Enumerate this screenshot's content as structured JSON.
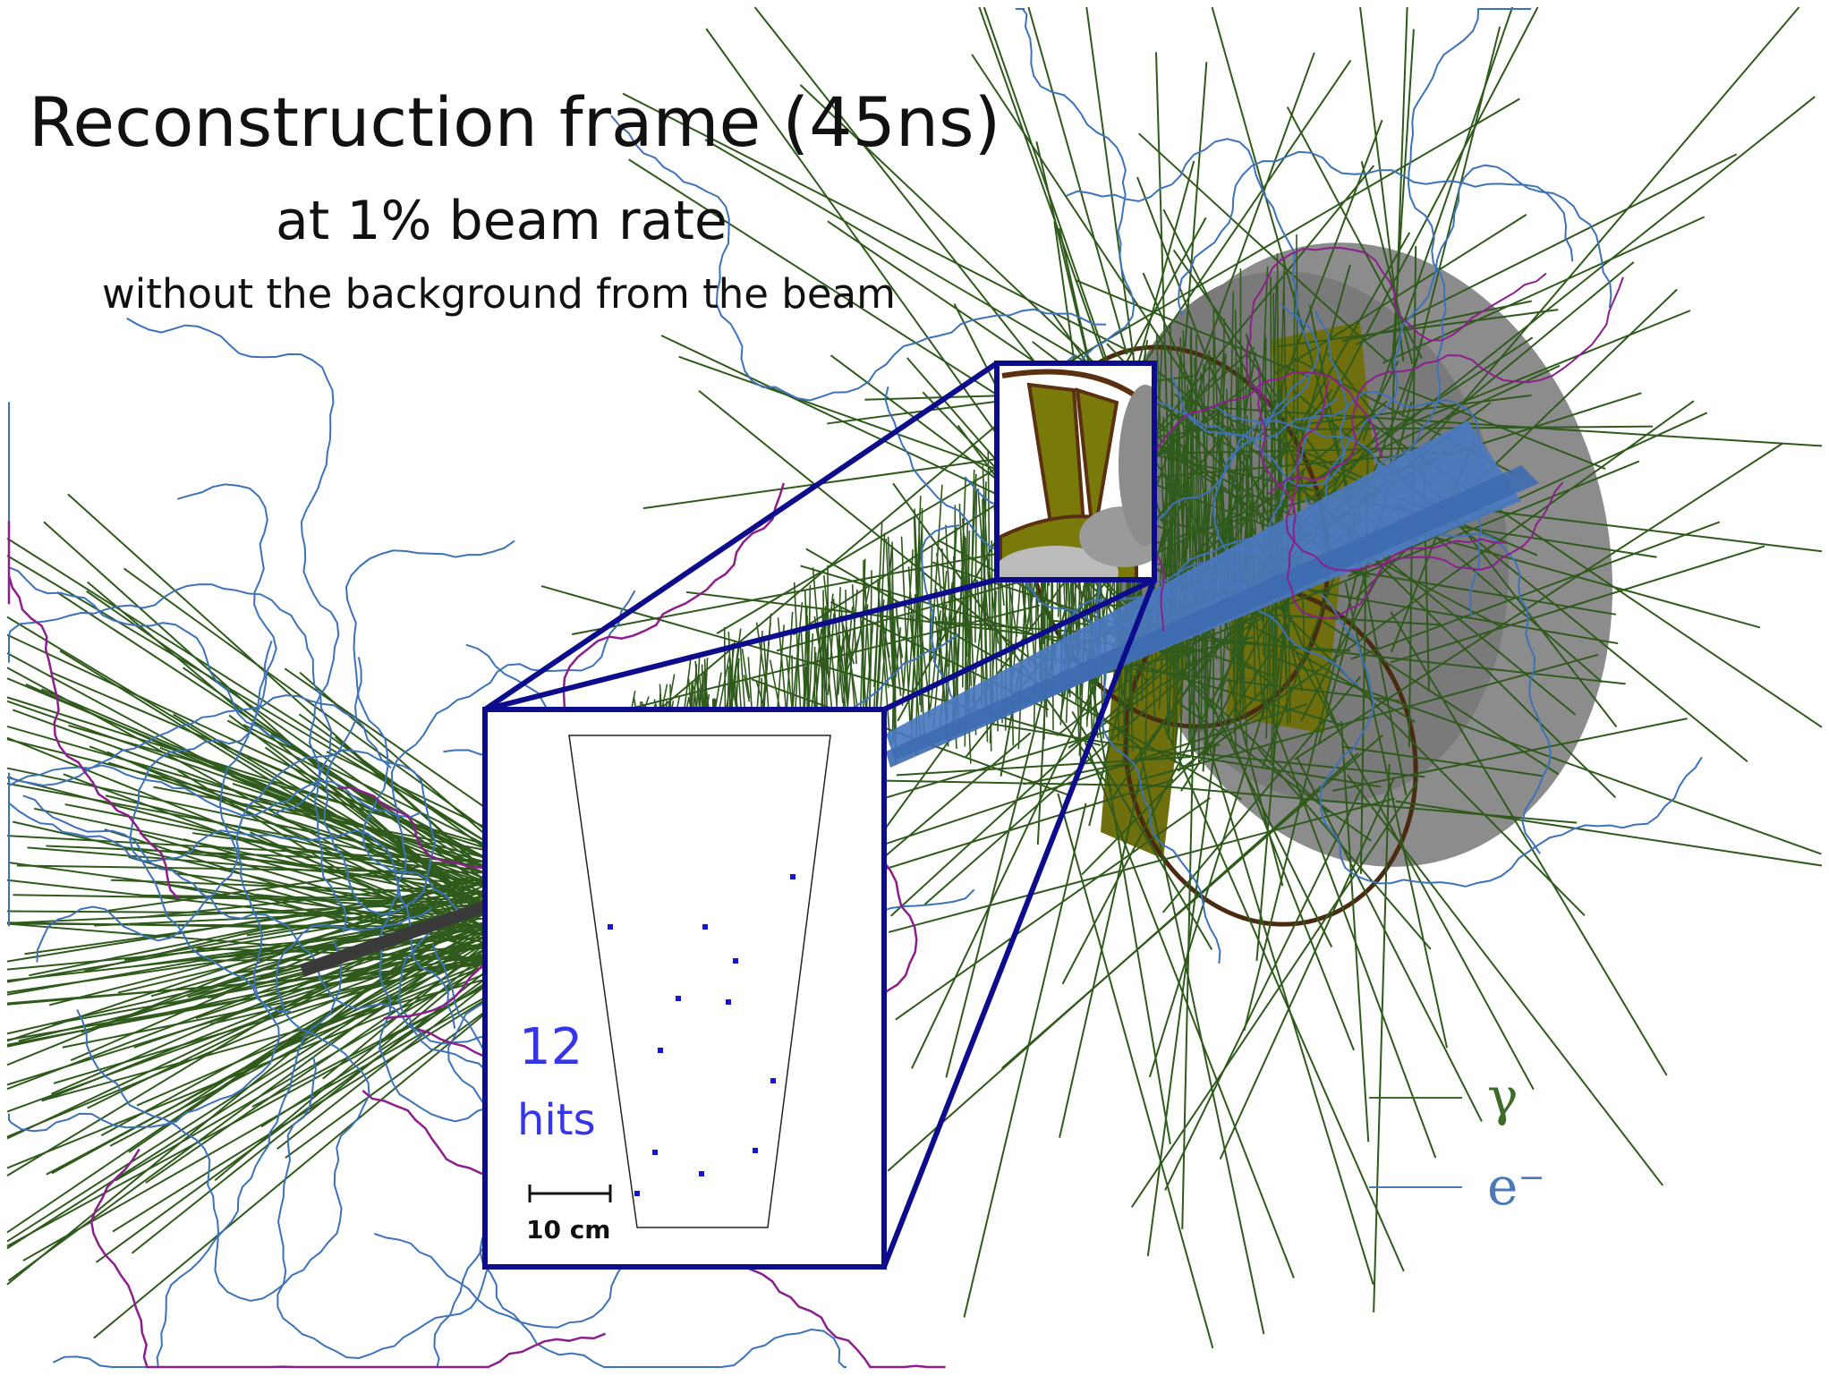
{
  "title": "Reconstruction frame (45ns)",
  "subtitle": "at 1% beam rate",
  "note": "without the background from the beam",
  "inset": {
    "hits_count": "12",
    "hits_label": "hits",
    "scale_label": "10 cm",
    "hit_count_value": 12
  },
  "legend": [
    {
      "symbol": "γ",
      "color": "#3e6b2a"
    },
    {
      "symbol": "e⁻",
      "color": "#4a7ab5"
    }
  ],
  "colors": {
    "photon_tracks": "#2f5a1c",
    "electron_tracks": "#3e72b8",
    "positron_tracks": "#8b1f8c",
    "beam": "#4a78c0",
    "detector_shell": "#8a8a8a",
    "detector_inner": "#6f6f0e",
    "inset_frame": "#0c0c8c",
    "hits": "#1414d8"
  }
}
